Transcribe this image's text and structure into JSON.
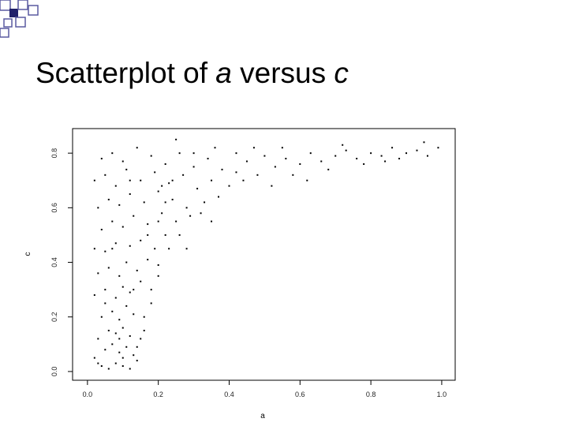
{
  "chart_data": {
    "type": "scatter",
    "title": [
      "Scatterplot of",
      "a",
      "versus",
      "c"
    ],
    "xlabel": "a",
    "ylabel": "c",
    "xlim": [
      -0.042,
      1.038
    ],
    "ylim": [
      -0.032,
      0.89
    ],
    "xticks": [
      {
        "value": 0,
        "label": "0.0"
      },
      {
        "value": 0.2,
        "label": "0.2"
      },
      {
        "value": 0.4,
        "label": "0.4"
      },
      {
        "value": 0.6,
        "label": "0.6"
      },
      {
        "value": 0.8,
        "label": "0.8"
      },
      {
        "value": 1,
        "label": "1.0"
      }
    ],
    "yticks": [
      {
        "value": 0,
        "label": "0.0"
      },
      {
        "value": 0.2,
        "label": "0.2"
      },
      {
        "value": 0.4,
        "label": "0.4"
      },
      {
        "value": 0.6,
        "label": "0.6"
      },
      {
        "value": 0.8,
        "label": "0.8"
      }
    ],
    "color": "#000000",
    "x": [
      0.02,
      0.04,
      0.06,
      0.08,
      0.1,
      0.12,
      0.14,
      0.05,
      0.07,
      0.09,
      0.11,
      0.13,
      0.03,
      0.06,
      0.08,
      0.1,
      0.12,
      0.15,
      0.04,
      0.07,
      0.09,
      0.11,
      0.13,
      0.16,
      0.02,
      0.05,
      0.08,
      0.1,
      0.12,
      0.15,
      0.18,
      0.03,
      0.06,
      0.09,
      0.11,
      0.14,
      0.17,
      0.2,
      0.02,
      0.05,
      0.08,
      0.12,
      0.15,
      0.19,
      0.22,
      0.04,
      0.07,
      0.1,
      0.13,
      0.17,
      0.21,
      0.25,
      0.03,
      0.06,
      0.09,
      0.12,
      0.16,
      0.2,
      0.24,
      0.28,
      0.32,
      0.02,
      0.05,
      0.08,
      0.11,
      0.15,
      0.19,
      0.23,
      0.27,
      0.31,
      0.35,
      0.04,
      0.07,
      0.1,
      0.14,
      0.18,
      0.22,
      0.26,
      0.3,
      0.34,
      0.38,
      0.42,
      0.45,
      0.48,
      0.5,
      0.53,
      0.56,
      0.6,
      0.63,
      0.66,
      0.7,
      0.73,
      0.76,
      0.8,
      0.83,
      0.86,
      0.9,
      0.93,
      0.96,
      0.99,
      0.4,
      0.44,
      0.37,
      0.33,
      0.29,
      0.26,
      0.23,
      0.2,
      0.18,
      0.16,
      0.14,
      0.2,
      0.24,
      0.3,
      0.36,
      0.42,
      0.47,
      0.55,
      0.62,
      0.58,
      0.52,
      0.35,
      0.28,
      0.22,
      0.25,
      0.12,
      0.07,
      0.05,
      0.03,
      0.1,
      0.09,
      0.13,
      0.17,
      0.21,
      0.68,
      0.78,
      0.88,
      0.95,
      0.72,
      0.84
    ],
    "values": [
      0.05,
      0.02,
      0.01,
      0.03,
      0.02,
      0.01,
      0.04,
      0.08,
      0.1,
      0.07,
      0.09,
      0.06,
      0.12,
      0.15,
      0.14,
      0.16,
      0.13,
      0.12,
      0.2,
      0.22,
      0.19,
      0.24,
      0.21,
      0.2,
      0.28,
      0.3,
      0.27,
      0.31,
      0.29,
      0.33,
      0.3,
      0.36,
      0.38,
      0.35,
      0.4,
      0.37,
      0.41,
      0.39,
      0.45,
      0.44,
      0.47,
      0.46,
      0.48,
      0.45,
      0.5,
      0.52,
      0.55,
      0.53,
      0.57,
      0.54,
      0.58,
      0.55,
      0.6,
      0.63,
      0.61,
      0.65,
      0.62,
      0.66,
      0.63,
      0.6,
      0.58,
      0.7,
      0.72,
      0.68,
      0.74,
      0.7,
      0.73,
      0.69,
      0.72,
      0.67,
      0.7,
      0.78,
      0.8,
      0.77,
      0.82,
      0.79,
      0.76,
      0.8,
      0.75,
      0.78,
      0.74,
      0.73,
      0.77,
      0.72,
      0.79,
      0.75,
      0.78,
      0.76,
      0.8,
      0.77,
      0.79,
      0.81,
      0.78,
      0.8,
      0.79,
      0.82,
      0.8,
      0.81,
      0.79,
      0.82,
      0.68,
      0.7,
      0.64,
      0.62,
      0.57,
      0.5,
      0.45,
      0.35,
      0.25,
      0.15,
      0.09,
      0.55,
      0.7,
      0.8,
      0.82,
      0.8,
      0.82,
      0.82,
      0.7,
      0.72,
      0.68,
      0.55,
      0.45,
      0.62,
      0.85,
      0.7,
      0.45,
      0.25,
      0.03,
      0.05,
      0.12,
      0.3,
      0.5,
      0.68,
      0.74,
      0.76,
      0.78,
      0.84,
      0.83,
      0.77
    ]
  }
}
